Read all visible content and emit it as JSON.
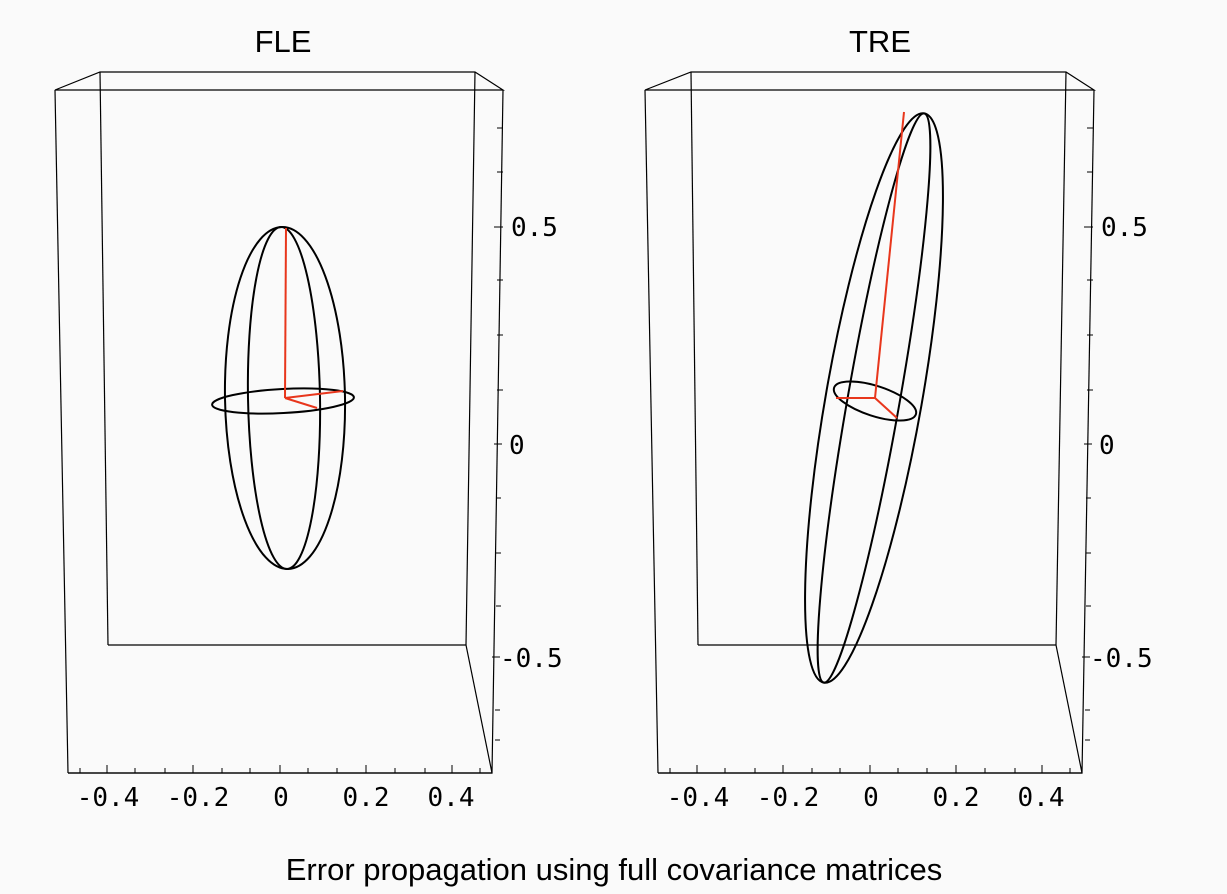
{
  "panels": [
    {
      "id": "fle",
      "title": "FLE"
    },
    {
      "id": "tre",
      "title": "TRE"
    }
  ],
  "caption": "Error propagation using full covariance matrices",
  "colors": {
    "background": "#fafafa",
    "ellipsoid": "#000000",
    "principal_axes": "#e8361c",
    "box": "#000000"
  },
  "chart_data": [
    {
      "type": "3d-ellipsoid",
      "title": "FLE",
      "x_ticks": [
        "-0.4",
        "-0.2",
        "0",
        "0.2",
        "0.4"
      ],
      "z_ticks": [
        "0.5",
        "0",
        "-0.5"
      ],
      "center": {
        "x": 0,
        "z": 0.1
      },
      "vertical_extent": [
        -0.3,
        0.5
      ],
      "horizontal_extent": [
        -0.16,
        0.16
      ],
      "tilt": "vertical"
    },
    {
      "type": "3d-ellipsoid",
      "title": "TRE",
      "x_ticks": [
        "-0.4",
        "-0.2",
        "0",
        "0.2",
        "0.4"
      ],
      "z_ticks": [
        "0.5",
        "0",
        "-0.5"
      ],
      "center": {
        "x": 0.0,
        "z": 0.1
      },
      "vertical_extent": [
        -0.55,
        0.8
      ],
      "horizontal_extent": [
        -0.1,
        0.1
      ],
      "tilt": "leaning right"
    }
  ]
}
